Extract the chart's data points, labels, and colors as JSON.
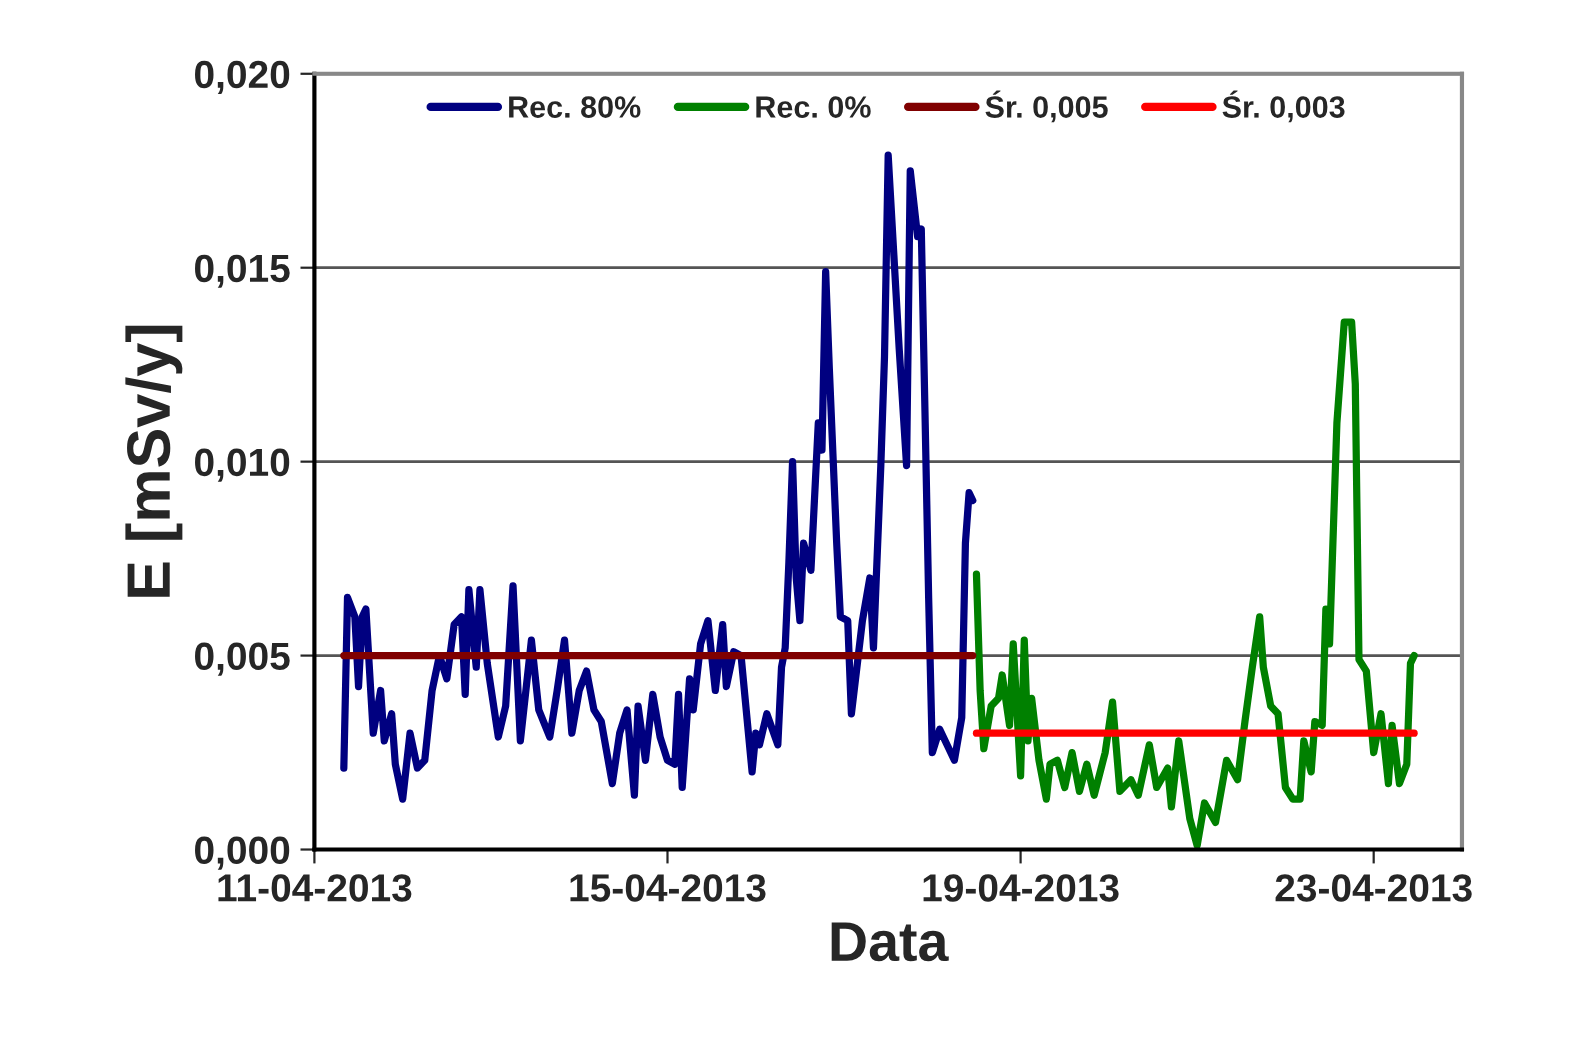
{
  "chart_data": {
    "type": "line",
    "xlabel": "Data",
    "ylabel": "E [mSv/y]",
    "xlim": [
      "2013-04-11",
      "2013-04-24"
    ],
    "xticks": [
      {
        "value": "2013-04-11",
        "label": "11-04-2013"
      },
      {
        "value": "2013-04-15",
        "label": "15-04-2013"
      },
      {
        "value": "2013-04-19",
        "label": "19-04-2013"
      },
      {
        "value": "2013-04-23",
        "label": "23-04-2013"
      }
    ],
    "ylim": [
      0,
      0.02
    ],
    "yticks": [
      {
        "value": 0,
        "label": "0,000"
      },
      {
        "value": 0.005,
        "label": "0,005"
      },
      {
        "value": 0.01,
        "label": "0,010"
      },
      {
        "value": 0.015,
        "label": "0,015"
      },
      {
        "value": 0.02,
        "label": "0,020"
      }
    ],
    "grid": "y",
    "legend": "top",
    "marker": "none",
    "line_style": "solid",
    "series": [
      {
        "name": "Rec. 80%",
        "color": "#000080",
        "x": [
          "2013-04-11T08:00",
          "2013-04-11T09:00",
          "2013-04-11T11:00",
          "2013-04-11T12:00",
          "2013-04-11T13:00",
          "2013-04-11T14:00",
          "2013-04-11T16:00",
          "2013-04-11T18:00",
          "2013-04-11T19:00",
          "2013-04-11T21:00",
          "2013-04-11T22:00",
          "2013-04-12T00:00",
          "2013-04-12T02:00",
          "2013-04-12T04:00",
          "2013-04-12T06:00",
          "2013-04-12T08:00",
          "2013-04-12T10:00",
          "2013-04-12T12:00",
          "2013-04-12T14:00",
          "2013-04-12T16:00",
          "2013-04-12T17:00",
          "2013-04-12T18:00",
          "2013-04-12T20:00",
          "2013-04-12T21:00",
          "2013-04-12T23:00",
          "2013-04-13T02:00",
          "2013-04-13T04:00",
          "2013-04-13T06:00",
          "2013-04-13T08:00",
          "2013-04-13T11:00",
          "2013-04-13T13:00",
          "2013-04-13T16:00",
          "2013-04-13T18:00",
          "2013-04-13T20:00",
          "2013-04-13T22:00",
          "2013-04-14T00:00",
          "2013-04-14T02:00",
          "2013-04-14T04:00",
          "2013-04-14T06:00",
          "2013-04-14T09:00",
          "2013-04-14T11:00",
          "2013-04-14T13:00",
          "2013-04-14T15:00",
          "2013-04-14T16:00",
          "2013-04-14T18:00",
          "2013-04-14T20:00",
          "2013-04-14T22:00",
          "2013-04-15T00:00",
          "2013-04-15T02:00",
          "2013-04-15T03:00",
          "2013-04-15T04:00",
          "2013-04-15T06:00",
          "2013-04-15T07:00",
          "2013-04-15T09:00",
          "2013-04-15T11:00",
          "2013-04-15T13:00",
          "2013-04-15T15:00",
          "2013-04-15T16:00",
          "2013-04-15T18:00",
          "2013-04-15T20:00",
          "2013-04-15T23:00",
          "2013-04-16T00:00",
          "2013-04-16T01:00",
          "2013-04-16T03:00",
          "2013-04-16T06:00",
          "2013-04-16T07:00",
          "2013-04-16T08:00",
          "2013-04-16T09:00",
          "2013-04-16T10:00",
          "2013-04-16T11:00",
          "2013-04-16T12:00",
          "2013-04-16T13:00",
          "2013-04-16T15:00",
          "2013-04-16T17:00",
          "2013-04-16T18:00",
          "2013-04-16T19:00",
          "2013-04-16T20:00",
          "2013-04-16T22:00",
          "2013-04-16T23:00",
          "2013-04-17T01:00",
          "2013-04-17T02:00",
          "2013-04-17T04:00",
          "2013-04-17T05:00",
          "2013-04-17T07:00",
          "2013-04-17T08:00",
          "2013-04-17T10:00",
          "2013-04-17T11:00",
          "2013-04-17T12:00",
          "2013-04-17T15:00",
          "2013-04-17T17:00",
          "2013-04-17T18:00",
          "2013-04-17T20:00",
          "2013-04-17T21:00",
          "2013-04-17T22:00",
          "2013-04-17T23:00",
          "2013-04-18T00:00",
          "2013-04-18T02:00",
          "2013-04-18T04:00",
          "2013-04-18T06:00",
          "2013-04-18T08:00",
          "2013-04-18T09:00",
          "2013-04-18T10:00",
          "2013-04-18T11:00"
        ],
        "values": [
          0.0021,
          0.0065,
          0.006,
          0.0042,
          0.006,
          0.0062,
          0.003,
          0.0041,
          0.0028,
          0.0035,
          0.0022,
          0.0013,
          0.003,
          0.0021,
          0.0023,
          0.0041,
          0.005,
          0.0044,
          0.0058,
          0.006,
          0.004,
          0.0067,
          0.0047,
          0.0067,
          0.0048,
          0.0029,
          0.0037,
          0.0068,
          0.0028,
          0.0054,
          0.0036,
          0.0029,
          0.0041,
          0.0054,
          0.003,
          0.0041,
          0.0046,
          0.0036,
          0.0033,
          0.0017,
          0.003,
          0.0036,
          0.0014,
          0.0037,
          0.0023,
          0.004,
          0.0029,
          0.0023,
          0.0022,
          0.004,
          0.0016,
          0.0044,
          0.0036,
          0.0053,
          0.0059,
          0.0041,
          0.0058,
          0.0042,
          0.0051,
          0.005,
          0.002,
          0.003,
          0.0027,
          0.0035,
          0.0027,
          0.0047,
          0.0052,
          0.0074,
          0.01,
          0.007,
          0.0059,
          0.0079,
          0.0072,
          0.011,
          0.0103,
          0.0149,
          0.0124,
          0.0079,
          0.006,
          0.0059,
          0.0035,
          0.0051,
          0.0059,
          0.007,
          0.0052,
          0.0099,
          0.0127,
          0.0179,
          0.0129,
          0.0099,
          0.0175,
          0.0158,
          0.016,
          0.0113,
          0.0065,
          0.0025,
          0.0031,
          0.0027,
          0.0023,
          0.0034,
          0.0079,
          0.0092,
          0.009
        ]
      },
      {
        "name": "Rec. 0%",
        "color": "#008000",
        "x": [
          "2013-04-18T12:00",
          "2013-04-18T13:00",
          "2013-04-18T14:00",
          "2013-04-18T16:00",
          "2013-04-18T18:00",
          "2013-04-18T19:00",
          "2013-04-18T21:00",
          "2013-04-18T22:00",
          "2013-04-19T00:00",
          "2013-04-19T01:00",
          "2013-04-19T02:00",
          "2013-04-19T03:00",
          "2013-04-19T05:00",
          "2013-04-19T07:00",
          "2013-04-19T08:00",
          "2013-04-19T10:00",
          "2013-04-19T12:00",
          "2013-04-19T14:00",
          "2013-04-19T16:00",
          "2013-04-19T18:00",
          "2013-04-19T20:00",
          "2013-04-19T23:00",
          "2013-04-20T01:00",
          "2013-04-20T03:00",
          "2013-04-20T06:00",
          "2013-04-20T08:00",
          "2013-04-20T11:00",
          "2013-04-20T13:00",
          "2013-04-20T16:00",
          "2013-04-20T17:00",
          "2013-04-20T19:00",
          "2013-04-20T22:00",
          "2013-04-21T00:00",
          "2013-04-21T02:00",
          "2013-04-21T05:00",
          "2013-04-21T08:00",
          "2013-04-21T11:00",
          "2013-04-21T13:00",
          "2013-04-21T15:00",
          "2013-04-21T17:00",
          "2013-04-21T18:00",
          "2013-04-21T20:00",
          "2013-04-21T22:00",
          "2013-04-22T00:00",
          "2013-04-22T02:00",
          "2013-04-22T04:00",
          "2013-04-22T05:00",
          "2013-04-22T07:00",
          "2013-04-22T08:00",
          "2013-04-22T10:00",
          "2013-04-22T11:00",
          "2013-04-22T12:00",
          "2013-04-22T14:00",
          "2013-04-22T16:00",
          "2013-04-22T18:00",
          "2013-04-22T19:00",
          "2013-04-22T20:00",
          "2013-04-22T22:00",
          "2013-04-23T00:00",
          "2013-04-23T02:00",
          "2013-04-23T04:00",
          "2013-04-23T05:00",
          "2013-04-23T07:00",
          "2013-04-23T09:00",
          "2013-04-23T10:00",
          "2013-04-23T11:00"
        ],
        "values": [
          0.0071,
          0.0041,
          0.0026,
          0.0037,
          0.0039,
          0.0045,
          0.0032,
          0.0053,
          0.0019,
          0.0054,
          0.0028,
          0.0039,
          0.0023,
          0.0013,
          0.0022,
          0.0023,
          0.0016,
          0.0025,
          0.0015,
          0.0022,
          0.0014,
          0.0025,
          0.0038,
          0.0015,
          0.0018,
          0.0014,
          0.0027,
          0.0016,
          0.0021,
          0.0011,
          0.0028,
          0.0008,
          0.0001,
          0.0012,
          0.0007,
          0.0023,
          0.0018,
          0.0033,
          0.0047,
          0.006,
          0.0047,
          0.0037,
          0.0035,
          0.0016,
          0.0013,
          0.0013,
          0.0028,
          0.002,
          0.0033,
          0.0032,
          0.0062,
          0.0053,
          0.011,
          0.0136,
          0.0136,
          0.012,
          0.0049,
          0.0046,
          0.0025,
          0.0035,
          0.0017,
          0.0032,
          0.0017,
          0.0022,
          0.0048,
          0.005
        ]
      },
      {
        "name": "Śr. 0,005",
        "color": "#800000",
        "x": [
          "2013-04-11T08:00",
          "2013-04-18T11:00"
        ],
        "values": [
          0.005,
          0.005
        ]
      },
      {
        "name": "Śr. 0,003",
        "color": "#ff0000",
        "x": [
          "2013-04-18T12:00",
          "2013-04-23T11:00"
        ],
        "values": [
          0.003,
          0.003
        ]
      }
    ]
  }
}
